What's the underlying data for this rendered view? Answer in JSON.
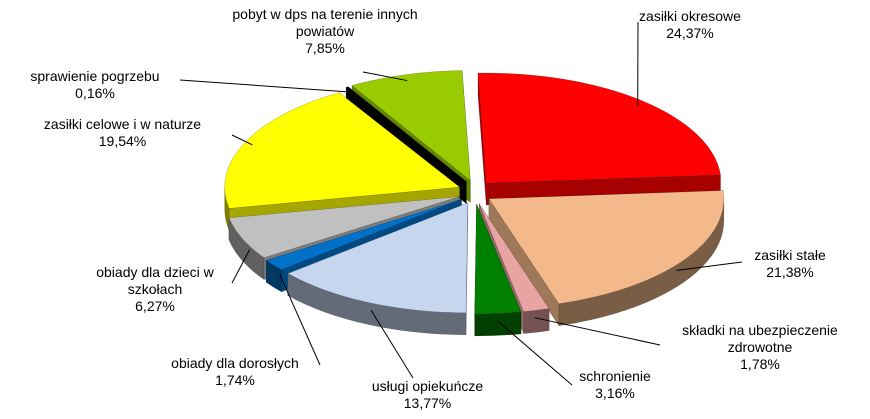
{
  "chart_data": {
    "type": "pie",
    "categories": [
      "zasiłki okresowe",
      "zasiłki stałe",
      "składki na ubezpieczenie zdrowotne",
      "schronienie",
      "usługi opiekuńcze",
      "obiady dla dorosłych",
      "obiady dla dzieci w szkołach",
      "zasiłki celowe i w naturze",
      "sprawienie pogrzebu",
      "pobyt w dps na terenie innych powiatów"
    ],
    "values": [
      24.37,
      21.38,
      1.78,
      3.16,
      13.77,
      1.74,
      6.27,
      19.54,
      0.16,
      7.85
    ],
    "value_labels": [
      "24,37%",
      "21,38%",
      "1,78%",
      "3,16%",
      "13,77%",
      "1,74%",
      "6,27%",
      "19,54%",
      "0,16%",
      "7,85%"
    ],
    "colors": [
      "#ff0000",
      "#f4b98a",
      "#e8a3a3",
      "#008000",
      "#c6d6ef",
      "#0070c8",
      "#c0c0c0",
      "#ffff00",
      "#000000",
      "#99cc00"
    ]
  }
}
